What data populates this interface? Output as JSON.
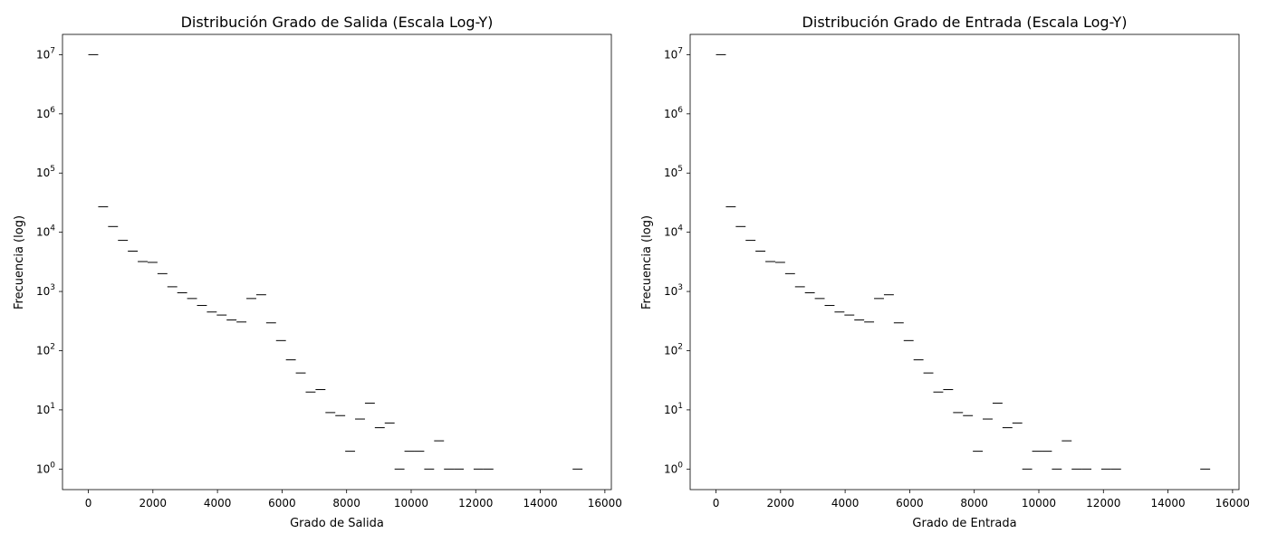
{
  "chart_data": [
    {
      "type": "bar",
      "histtype": "step",
      "title": "Distribución Grado de Salida (Escala Log-Y)",
      "xlabel": "Grado de Salida",
      "ylabel": "Frecuencia (log)",
      "xlim": [
        -800,
        16200
      ],
      "ylim": [
        0.45,
        22000000
      ],
      "yscale": "log",
      "grid": false,
      "bin_width": 306,
      "x_ticks": [
        0,
        2000,
        4000,
        6000,
        8000,
        10000,
        12000,
        14000,
        16000
      ],
      "y_ticks": [
        {
          "value": 1,
          "base": "10",
          "exp": "0"
        },
        {
          "value": 10,
          "base": "10",
          "exp": "1"
        },
        {
          "value": 100,
          "base": "10",
          "exp": "2"
        },
        {
          "value": 1000,
          "base": "10",
          "exp": "3"
        },
        {
          "value": 10000,
          "base": "10",
          "exp": "4"
        },
        {
          "value": 100000,
          "base": "10",
          "exp": "5"
        },
        {
          "value": 1000000,
          "base": "10",
          "exp": "6"
        },
        {
          "value": 10000000,
          "base": "10",
          "exp": "7"
        }
      ],
      "bins": [
        {
          "x": 0,
          "count": 10000000
        },
        {
          "x": 306,
          "count": 27000
        },
        {
          "x": 612,
          "count": 12500
        },
        {
          "x": 918,
          "count": 7300
        },
        {
          "x": 1224,
          "count": 4800
        },
        {
          "x": 1530,
          "count": 3200
        },
        {
          "x": 1836,
          "count": 3100
        },
        {
          "x": 2142,
          "count": 2000
        },
        {
          "x": 2448,
          "count": 1200
        },
        {
          "x": 2754,
          "count": 950
        },
        {
          "x": 3060,
          "count": 760
        },
        {
          "x": 3366,
          "count": 580
        },
        {
          "x": 3672,
          "count": 450
        },
        {
          "x": 3978,
          "count": 400
        },
        {
          "x": 4284,
          "count": 330
        },
        {
          "x": 4590,
          "count": 305
        },
        {
          "x": 4896,
          "count": 760
        },
        {
          "x": 5202,
          "count": 880
        },
        {
          "x": 5508,
          "count": 295
        },
        {
          "x": 5814,
          "count": 148
        },
        {
          "x": 6120,
          "count": 70
        },
        {
          "x": 6426,
          "count": 42
        },
        {
          "x": 6732,
          "count": 20
        },
        {
          "x": 7038,
          "count": 22
        },
        {
          "x": 7344,
          "count": 9
        },
        {
          "x": 7650,
          "count": 8
        },
        {
          "x": 7956,
          "count": 2
        },
        {
          "x": 8262,
          "count": 7
        },
        {
          "x": 8568,
          "count": 13
        },
        {
          "x": 8874,
          "count": 5
        },
        {
          "x": 9180,
          "count": 6
        },
        {
          "x": 9486,
          "count": 1
        },
        {
          "x": 9792,
          "count": 2
        },
        {
          "x": 10098,
          "count": 2
        },
        {
          "x": 10404,
          "count": 1
        },
        {
          "x": 10710,
          "count": 3
        },
        {
          "x": 11016,
          "count": 1
        },
        {
          "x": 11322,
          "count": 1
        },
        {
          "x": 11934,
          "count": 1
        },
        {
          "x": 12240,
          "count": 1
        },
        {
          "x": 15000,
          "count": 1
        }
      ]
    },
    {
      "type": "bar",
      "histtype": "step",
      "title": "Distribución Grado de Entrada (Escala Log-Y)",
      "xlabel": "Grado de Entrada",
      "ylabel": "Frecuencia (log)",
      "xlim": [
        -800,
        16200
      ],
      "ylim": [
        0.45,
        22000000
      ],
      "yscale": "log",
      "grid": false,
      "bin_width": 306,
      "x_ticks": [
        0,
        2000,
        4000,
        6000,
        8000,
        10000,
        12000,
        14000,
        16000
      ],
      "y_ticks": [
        {
          "value": 1,
          "base": "10",
          "exp": "0"
        },
        {
          "value": 10,
          "base": "10",
          "exp": "1"
        },
        {
          "value": 100,
          "base": "10",
          "exp": "2"
        },
        {
          "value": 1000,
          "base": "10",
          "exp": "3"
        },
        {
          "value": 10000,
          "base": "10",
          "exp": "4"
        },
        {
          "value": 100000,
          "base": "10",
          "exp": "5"
        },
        {
          "value": 1000000,
          "base": "10",
          "exp": "6"
        },
        {
          "value": 10000000,
          "base": "10",
          "exp": "7"
        }
      ],
      "bins": [
        {
          "x": 0,
          "count": 10000000
        },
        {
          "x": 306,
          "count": 27000
        },
        {
          "x": 612,
          "count": 12500
        },
        {
          "x": 918,
          "count": 7300
        },
        {
          "x": 1224,
          "count": 4800
        },
        {
          "x": 1530,
          "count": 3200
        },
        {
          "x": 1836,
          "count": 3100
        },
        {
          "x": 2142,
          "count": 2000
        },
        {
          "x": 2448,
          "count": 1200
        },
        {
          "x": 2754,
          "count": 950
        },
        {
          "x": 3060,
          "count": 760
        },
        {
          "x": 3366,
          "count": 580
        },
        {
          "x": 3672,
          "count": 450
        },
        {
          "x": 3978,
          "count": 400
        },
        {
          "x": 4284,
          "count": 330
        },
        {
          "x": 4590,
          "count": 305
        },
        {
          "x": 4896,
          "count": 760
        },
        {
          "x": 5202,
          "count": 880
        },
        {
          "x": 5508,
          "count": 295
        },
        {
          "x": 5814,
          "count": 148
        },
        {
          "x": 6120,
          "count": 70
        },
        {
          "x": 6426,
          "count": 42
        },
        {
          "x": 6732,
          "count": 20
        },
        {
          "x": 7038,
          "count": 22
        },
        {
          "x": 7344,
          "count": 9
        },
        {
          "x": 7650,
          "count": 8
        },
        {
          "x": 7956,
          "count": 2
        },
        {
          "x": 8262,
          "count": 7
        },
        {
          "x": 8568,
          "count": 13
        },
        {
          "x": 8874,
          "count": 5
        },
        {
          "x": 9180,
          "count": 6
        },
        {
          "x": 9486,
          "count": 1
        },
        {
          "x": 9792,
          "count": 2
        },
        {
          "x": 10098,
          "count": 2
        },
        {
          "x": 10404,
          "count": 1
        },
        {
          "x": 10710,
          "count": 3
        },
        {
          "x": 11016,
          "count": 1
        },
        {
          "x": 11322,
          "count": 1
        },
        {
          "x": 11934,
          "count": 1
        },
        {
          "x": 12240,
          "count": 1
        },
        {
          "x": 15000,
          "count": 1
        }
      ]
    }
  ]
}
